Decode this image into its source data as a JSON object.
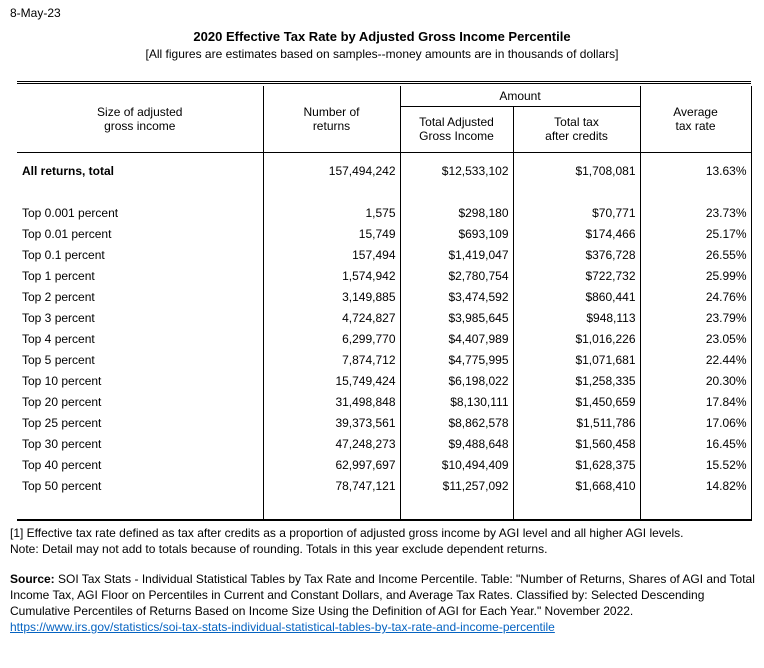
{
  "page": {
    "date": "8-May-23",
    "title": "2020 Effective Tax Rate by Adjusted Gross Income Percentile",
    "subtitle": "[All figures are estimates based on samples--money amounts are in thousands of dollars]"
  },
  "table": {
    "headers": {
      "amount_group": "Amount",
      "col_size": "Size of adjusted\ngross income",
      "col_returns": "Number of\nreturns",
      "col_agi": "Total Adjusted\nGross Income",
      "col_tax": "Total tax\nafter credits",
      "col_rate": "Average\ntax rate"
    },
    "rows": [
      {
        "label": "All returns, total",
        "returns": "157,494,242",
        "agi": "$12,533,102",
        "tax": "$1,708,081",
        "rate": "13.63%"
      },
      {
        "label": "Top 0.001 percent",
        "returns": "1,575",
        "agi": "$298,180",
        "tax": "$70,771",
        "rate": "23.73%"
      },
      {
        "label": "Top 0.01 percent",
        "returns": "15,749",
        "agi": "$693,109",
        "tax": "$174,466",
        "rate": "25.17%"
      },
      {
        "label": "Top 0.1 percent",
        "returns": "157,494",
        "agi": "$1,419,047",
        "tax": "$376,728",
        "rate": "26.55%"
      },
      {
        "label": "Top 1 percent",
        "returns": "1,574,942",
        "agi": "$2,780,754",
        "tax": "$722,732",
        "rate": "25.99%"
      },
      {
        "label": "Top 2 percent",
        "returns": "3,149,885",
        "agi": "$3,474,592",
        "tax": "$860,441",
        "rate": "24.76%"
      },
      {
        "label": "Top 3 percent",
        "returns": "4,724,827",
        "agi": "$3,985,645",
        "tax": "$948,113",
        "rate": "23.79%"
      },
      {
        "label": "Top 4 percent",
        "returns": "6,299,770",
        "agi": "$4,407,989",
        "tax": "$1,016,226",
        "rate": "23.05%"
      },
      {
        "label": "Top 5 percent",
        "returns": "7,874,712",
        "agi": "$4,775,995",
        "tax": "$1,071,681",
        "rate": "22.44%"
      },
      {
        "label": "Top 10 percent",
        "returns": "15,749,424",
        "agi": "$6,198,022",
        "tax": "$1,258,335",
        "rate": "20.30%"
      },
      {
        "label": "Top 20 percent",
        "returns": "31,498,848",
        "agi": "$8,130,111",
        "tax": "$1,450,659",
        "rate": "17.84%"
      },
      {
        "label": "Top 25 percent",
        "returns": "39,373,561",
        "agi": "$8,862,578",
        "tax": "$1,511,786",
        "rate": "17.06%"
      },
      {
        "label": "Top 30 percent",
        "returns": "47,248,273",
        "agi": "$9,488,648",
        "tax": "$1,560,458",
        "rate": "16.45%"
      },
      {
        "label": "Top 40 percent",
        "returns": "62,997,697",
        "agi": "$10,494,409",
        "tax": "$1,628,375",
        "rate": "15.52%"
      },
      {
        "label": "Top 50 percent",
        "returns": "78,747,121",
        "agi": "$11,257,092",
        "tax": "$1,668,410",
        "rate": "14.82%"
      }
    ]
  },
  "footnotes": {
    "note1": "[1] Effective tax rate defined as tax after credits as a proportion of adjusted gross income by AGI level and all higher AGI levels.",
    "note2": "Note: Detail may not add to totals because of rounding. Totals in this year exclude dependent returns.",
    "source_label": "Source:",
    "source_text": " SOI Tax Stats - Individual Statistical Tables by Tax Rate and Income Percentile. Table: \"Number of Returns, Shares of AGI and Total Income Tax, AGI Floor on Percentiles in Current and Constant Dollars, and Average Tax Rates. Classified by: Selected Descending Cumulative Percentiles of Returns Based on Income Size Using the Definition of AGI for Each Year.\" November 2022.",
    "link": "https://www.irs.gov/statistics/soi-tax-stats-individual-statistical-tables-by-tax-rate-and-income-percentile"
  }
}
